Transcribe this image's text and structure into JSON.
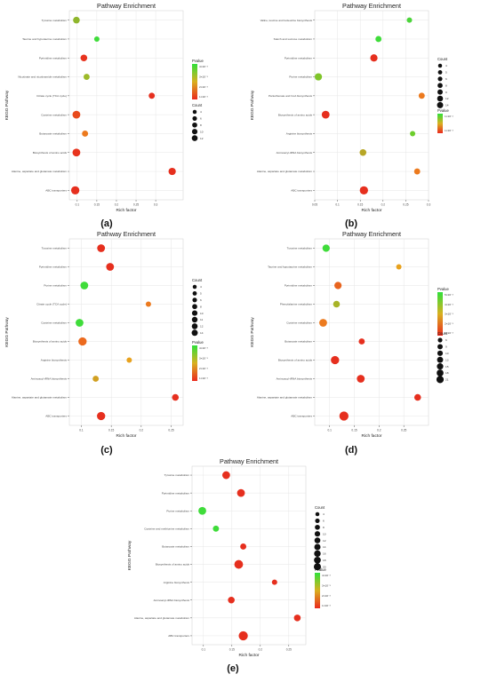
{
  "chart_data": [
    {
      "id": "a",
      "type": "scatter",
      "panel_label": "(a)",
      "title": "Pathway Enrichment",
      "xlabel": "Rich factor",
      "ylabel": "KEGG Pathway",
      "xlim": [
        0.08,
        0.37
      ],
      "xticks": [
        0.1,
        0.15,
        0.2,
        0.25,
        0.3
      ],
      "categories": [
        "Tyrosine metabolism",
        "Taurine and hypotaurine metabolism",
        "Pyrimidine metabolism",
        "Nicotinate and nicotinamide metabolism",
        "Citrate cycle (TCA cycle)",
        "Cysteine metabolism",
        "Butanoate metabolism",
        "Biosynthesis of amino acids",
        "Alanine, aspartate and glutamate metabolism",
        "ABC transporters"
      ],
      "points": [
        {
          "y": "Tyrosine metabolism",
          "x": 0.098,
          "count": 8,
          "color": "#8fb62c"
        },
        {
          "y": "Taurine and hypotaurine metabolism",
          "x": 0.15,
          "count": 4,
          "color": "#3fdc3a"
        },
        {
          "y": "Pyrimidine metabolism",
          "x": 0.117,
          "count": 8,
          "color": "#e8331f"
        },
        {
          "y": "Nicotinate and nicotinamide metabolism",
          "x": 0.124,
          "count": 6,
          "color": "#9dba2a"
        },
        {
          "y": "Citrate cycle (TCA cycle)",
          "x": 0.29,
          "count": 6,
          "color": "#e62f1e"
        },
        {
          "y": "Cysteine metabolism",
          "x": 0.098,
          "count": 12,
          "color": "#e84a1c"
        },
        {
          "y": "Butanoate metabolism",
          "x": 0.12,
          "count": 6,
          "color": "#ec7a1e"
        },
        {
          "y": "Biosynthesis of amino acids",
          "x": 0.098,
          "count": 12,
          "color": "#e8341e"
        },
        {
          "y": "Alanine, aspartate and glutamate metabolism",
          "x": 0.342,
          "count": 10,
          "color": "#e62f1e"
        },
        {
          "y": "ABC transporters",
          "x": 0.095,
          "count": 14,
          "color": "#e62f1e"
        }
      ],
      "legend": {
        "pvalue_title": "Pvalue",
        "pvalue_labels": [
          "4×10⁻³",
          "3×10⁻³",
          "2×10⁻³",
          "1×10⁻³"
        ],
        "count_title": "Count",
        "count_sizes": [
          4,
          6,
          8,
          10,
          12
        ]
      }
    },
    {
      "id": "b",
      "type": "scatter",
      "panel_label": "(b)",
      "title": "Pathway Enrichment",
      "xlabel": "Rich factor",
      "ylabel": "KEGG Pathway",
      "xlim": [
        0.05,
        0.3
      ],
      "xticks": [
        0.05,
        0.1,
        0.15,
        0.2,
        0.25,
        0.3
      ],
      "categories": [
        "Valine, leucine and isoleucine biosynthesis",
        "Starch and sucrose metabolism",
        "Pyrimidine metabolism",
        "Purine metabolism",
        "Pantothenate and CoA biosynthesis",
        "Biosynthesis of amino acids",
        "Arginine biosynthesis",
        "Aminoacyl-tRNA biosynthesis",
        "Alanine, aspartate and glutamate metabolism",
        "ABC transporters"
      ],
      "points": [
        {
          "y": "Valine, leucine and isoleucine biosynthesis",
          "x": 0.258,
          "count": 4,
          "color": "#4bd43a"
        },
        {
          "y": "Starch and sucrose metabolism",
          "x": 0.19,
          "count": 6,
          "color": "#3fdc3a"
        },
        {
          "y": "Pyrimidine metabolism",
          "x": 0.18,
          "count": 10,
          "color": "#e62f1e"
        },
        {
          "y": "Purine metabolism",
          "x": 0.058,
          "count": 10,
          "color": "#7fc52a"
        },
        {
          "y": "Pantothenate and CoA biosynthesis",
          "x": 0.285,
          "count": 6,
          "color": "#ec7a1e"
        },
        {
          "y": "Biosynthesis of amino acids",
          "x": 0.074,
          "count": 12,
          "color": "#e62f1e"
        },
        {
          "y": "Arginine biosynthesis",
          "x": 0.265,
          "count": 4,
          "color": "#6ccd2c"
        },
        {
          "y": "Aminoacyl-tRNA biosynthesis",
          "x": 0.156,
          "count": 8,
          "color": "#b7a625"
        },
        {
          "y": "Alanine, aspartate and glutamate metabolism",
          "x": 0.275,
          "count": 6,
          "color": "#ec7a1e"
        },
        {
          "y": "ABC transporters",
          "x": 0.158,
          "count": 14,
          "color": "#e62f1e"
        }
      ],
      "legend": {
        "pvalue_title": "Pvalue",
        "pvalue_labels": [
          "1×10⁻²",
          "1×10⁻³"
        ],
        "count_title": "Count",
        "count_sizes": [
          4,
          5,
          6,
          8,
          9,
          12,
          14
        ]
      }
    },
    {
      "id": "c",
      "type": "scatter",
      "panel_label": "(c)",
      "title": "Pathway Enrichment",
      "xlabel": "Rich factor",
      "ylabel": "KEGG Pathway",
      "xlim": [
        0.08,
        0.27
      ],
      "xticks": [
        0.1,
        0.15,
        0.2,
        0.25
      ],
      "categories": [
        "Tyrosine metabolism",
        "Pyrimidine metabolism",
        "Purine metabolism",
        "Citrate cycle (TCA cycle)",
        "Cysteine metabolism",
        "Biosynthesis of amino acids",
        "Arginine biosynthesis",
        "Aminoacyl-tRNA biosynthesis",
        "Alanine, aspartate and glutamate metabolism",
        "ABC transporters"
      ],
      "points": [
        {
          "y": "Tyrosine metabolism",
          "x": 0.133,
          "count": 12,
          "color": "#e62f1e"
        },
        {
          "y": "Pyrimidine metabolism",
          "x": 0.148,
          "count": 12,
          "color": "#e62f1e"
        },
        {
          "y": "Purine metabolism",
          "x": 0.105,
          "count": 12,
          "color": "#3fdc3a"
        },
        {
          "y": "Citrate cycle (TCA cycle)",
          "x": 0.212,
          "count": 4,
          "color": "#ec7a1e"
        },
        {
          "y": "Cysteine metabolism",
          "x": 0.097,
          "count": 12,
          "color": "#3fdc3a"
        },
        {
          "y": "Biosynthesis of amino acids",
          "x": 0.102,
          "count": 14,
          "color": "#ec6a1e"
        },
        {
          "y": "Arginine biosynthesis",
          "x": 0.18,
          "count": 4,
          "color": "#e8a21e"
        },
        {
          "y": "Aminoacyl-tRNA biosynthesis",
          "x": 0.124,
          "count": 6,
          "color": "#d1a021"
        },
        {
          "y": "Alanine, aspartate and glutamate metabolism",
          "x": 0.257,
          "count": 8,
          "color": "#e62f1e"
        },
        {
          "y": "ABC transporters",
          "x": 0.133,
          "count": 14,
          "color": "#e62f1e"
        }
      ],
      "legend": {
        "pvalue_title": "Pvalue",
        "pvalue_labels": [
          "4×10⁻³",
          "3×10⁻³",
          "2×10⁻³",
          "1×10⁻³"
        ],
        "count_title": "Count",
        "count_sizes": [
          4,
          5,
          6,
          8,
          10,
          11,
          12,
          14
        ]
      }
    },
    {
      "id": "d",
      "type": "scatter",
      "panel_label": "(d)",
      "title": "Pathway Enrichment",
      "xlabel": "Rich factor",
      "ylabel": "KEGG Pathway",
      "xlim": [
        0.07,
        0.3
      ],
      "xticks": [
        0.1,
        0.15,
        0.2,
        0.25
      ],
      "categories": [
        "Tyrosine metabolism",
        "Taurine and hypotaurine metabolism",
        "Pyrimidine metabolism",
        "Phenylalanine metabolism",
        "Cysteine metabolism",
        "Butanoate metabolism",
        "Biosynthesis of amino acids",
        "Aminoacyl-tRNA biosynthesis",
        "Alanine, aspartate and glutamate metabolism",
        "ABC transporters"
      ],
      "points": [
        {
          "y": "Tyrosine metabolism",
          "x": 0.093,
          "count": 10,
          "color": "#3fdc3a"
        },
        {
          "y": "Taurine and hypotaurine metabolism",
          "x": 0.24,
          "count": 4,
          "color": "#e8a21e"
        },
        {
          "y": "Pyrimidine metabolism",
          "x": 0.117,
          "count": 10,
          "color": "#e8641e"
        },
        {
          "y": "Phenylalanine metabolism",
          "x": 0.114,
          "count": 8,
          "color": "#a8b428"
        },
        {
          "y": "Cysteine metabolism",
          "x": 0.087,
          "count": 12,
          "color": "#ec7a1e"
        },
        {
          "y": "Butanoate metabolism",
          "x": 0.165,
          "count": 6,
          "color": "#e62f1e"
        },
        {
          "y": "Biosynthesis of amino acids",
          "x": 0.111,
          "count": 14,
          "color": "#e62f1e"
        },
        {
          "y": "Aminoacyl-tRNA biosynthesis",
          "x": 0.163,
          "count": 12,
          "color": "#e62f1e"
        },
        {
          "y": "Alanine, aspartate and glutamate metabolism",
          "x": 0.278,
          "count": 8,
          "color": "#e62f1e"
        },
        {
          "y": "ABC transporters",
          "x": 0.129,
          "count": 18,
          "color": "#e62f1e"
        }
      ],
      "legend": {
        "pvalue_title": "Pvalue",
        "pvalue_labels": [
          "5×10⁻³",
          "4×10⁻³",
          "3×10⁻³",
          "2×10⁻³",
          "1×10⁻³"
        ],
        "count_title": "Count",
        "count_sizes": [
          6,
          9,
          10,
          13,
          15,
          18,
          21
        ]
      }
    },
    {
      "id": "e",
      "type": "scatter",
      "panel_label": "(e)",
      "title": "Pathway Enrichment",
      "xlabel": "Rich factor",
      "ylabel": "KEGG Pathway",
      "xlim": [
        0.08,
        0.28
      ],
      "xticks": [
        0.1,
        0.15,
        0.2,
        0.25
      ],
      "categories": [
        "Tyrosine metabolism",
        "Pyrimidine metabolism",
        "Purine metabolism",
        "Cysteine and methionine metabolism",
        "Butanoate metabolism",
        "Biosynthesis of amino acids",
        "Arginine biosynthesis",
        "Aminoacyl-tRNA biosynthesis",
        "Alanine, aspartate and glutamate metabolism",
        "ABC transporters"
      ],
      "points": [
        {
          "y": "Tyrosine metabolism",
          "x": 0.14,
          "count": 12,
          "color": "#e62f1e"
        },
        {
          "y": "Pyrimidine metabolism",
          "x": 0.166,
          "count": 12,
          "color": "#e62f1e"
        },
        {
          "y": "Purine metabolism",
          "x": 0.098,
          "count": 12,
          "color": "#3fdc3a"
        },
        {
          "y": "Cysteine and methionine metabolism",
          "x": 0.122,
          "count": 6,
          "color": "#3fdc3a"
        },
        {
          "y": "Butanoate metabolism",
          "x": 0.17,
          "count": 6,
          "color": "#e62f1e"
        },
        {
          "y": "Biosynthesis of amino acids",
          "x": 0.162,
          "count": 16,
          "color": "#e62f1e"
        },
        {
          "y": "Arginine biosynthesis",
          "x": 0.225,
          "count": 4,
          "color": "#e62f1e"
        },
        {
          "y": "Aminoacyl-tRNA biosynthesis",
          "x": 0.149,
          "count": 8,
          "color": "#e62f1e"
        },
        {
          "y": "Alanine, aspartate and glutamate metabolism",
          "x": 0.265,
          "count": 8,
          "color": "#e62f1e"
        },
        {
          "y": "ABC transporters",
          "x": 0.17,
          "count": 18,
          "color": "#e62f1e"
        }
      ],
      "legend": {
        "pvalue_title": "Pvalue",
        "pvalue_labels": [
          "4×10⁻³",
          "3×10⁻³",
          "2×10⁻³",
          "1×10⁻³"
        ],
        "count_title": "Count",
        "count_sizes": [
          4,
          6,
          8,
          10,
          12,
          14,
          16,
          18,
          20
        ]
      }
    }
  ]
}
